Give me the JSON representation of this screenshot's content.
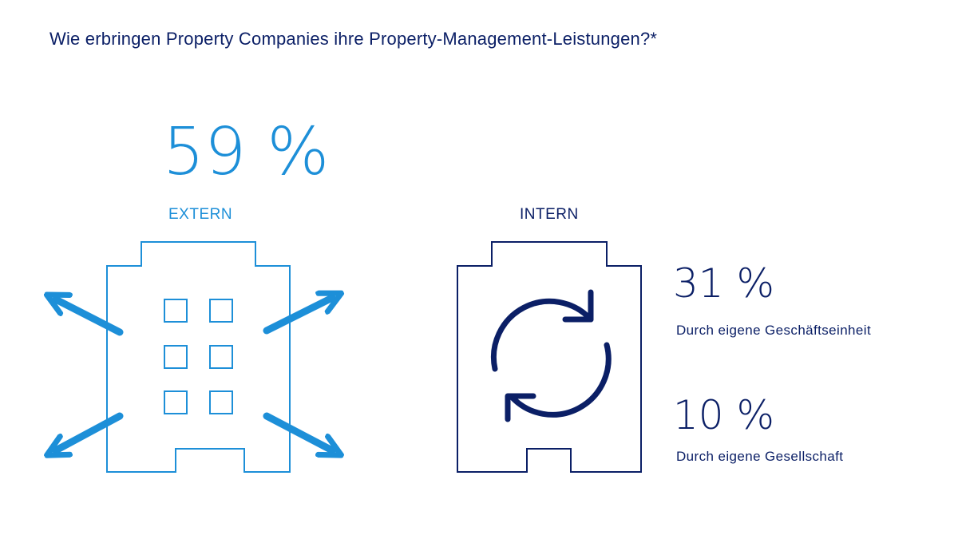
{
  "title": "Wie erbringen Property Companies ihre Property-Management-Leistungen?*",
  "colors": {
    "extern": "#1d8fd8",
    "intern": "#0b1f66"
  },
  "chart_data": {
    "type": "infographic",
    "title": "Wie erbringen Property Companies ihre Property-Management-Leistungen?*",
    "groups": [
      {
        "label": "EXTERN",
        "icon": "building-arrows-out-icon",
        "items": [
          {
            "value": 59,
            "display": "59 %",
            "description": ""
          }
        ]
      },
      {
        "label": "INTERN",
        "icon": "building-refresh-icon",
        "items": [
          {
            "value": 31,
            "display": "31 %",
            "description": "Durch eigene Geschäftseinheit"
          },
          {
            "value": 10,
            "display": "10 %",
            "description": "Durch eigene Gesellschaft"
          }
        ]
      }
    ]
  }
}
